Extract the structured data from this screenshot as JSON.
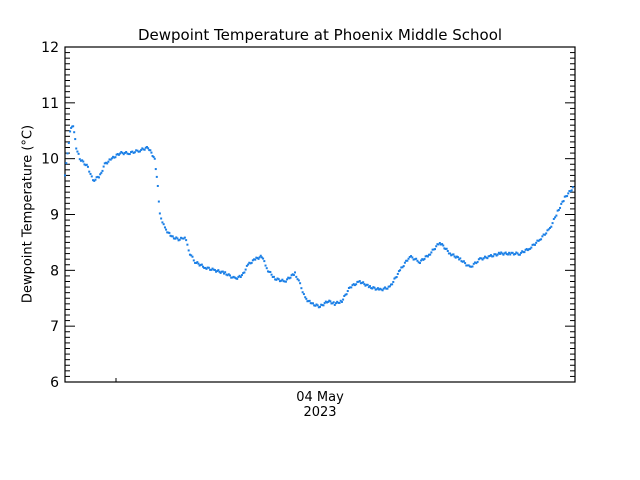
{
  "chart_data": {
    "type": "scatter",
    "title": "Dewpoint Temperature at Phoenix Middle School",
    "xlabel": "04 May\n2023",
    "ylabel": "Dewpoint Temperature (°C)",
    "ylim": [
      6,
      12
    ],
    "yticks": [
      6,
      7,
      8,
      9,
      10,
      11,
      12
    ],
    "xtick_labels": [
      "04 May 2023"
    ],
    "grid": false,
    "legend": null,
    "series_color": "#1a7fe6",
    "series": [
      {
        "name": "Dewpoint",
        "x_frac": [
          0.0,
          0.01,
          0.016,
          0.022,
          0.029,
          0.045,
          0.055,
          0.069,
          0.078,
          0.092,
          0.108,
          0.127,
          0.147,
          0.163,
          0.176,
          0.182,
          0.186,
          0.196,
          0.209,
          0.225,
          0.235,
          0.245,
          0.255,
          0.275,
          0.294,
          0.314,
          0.333,
          0.347,
          0.359,
          0.373,
          0.386,
          0.398,
          0.412,
          0.431,
          0.451,
          0.461,
          0.471,
          0.484,
          0.5,
          0.516,
          0.529,
          0.543,
          0.559,
          0.578,
          0.598,
          0.618,
          0.637,
          0.657,
          0.676,
          0.696,
          0.716,
          0.735,
          0.755,
          0.775,
          0.794,
          0.814,
          0.833,
          0.853,
          0.873,
          0.892,
          0.912,
          0.931,
          0.951,
          0.966,
          0.98,
          0.998
        ],
        "values": [
          9.7,
          10.5,
          10.6,
          10.2,
          10.0,
          9.85,
          9.6,
          9.7,
          9.9,
          10.0,
          10.1,
          10.1,
          10.15,
          10.2,
          10.0,
          9.5,
          9.0,
          8.75,
          8.6,
          8.55,
          8.6,
          8.3,
          8.15,
          8.05,
          8.0,
          7.95,
          7.85,
          7.9,
          8.1,
          8.2,
          8.25,
          8.0,
          7.85,
          7.8,
          7.95,
          7.75,
          7.5,
          7.4,
          7.35,
          7.45,
          7.4,
          7.45,
          7.7,
          7.8,
          7.7,
          7.65,
          7.7,
          8.0,
          8.25,
          8.15,
          8.3,
          8.5,
          8.3,
          8.2,
          8.05,
          8.2,
          8.25,
          8.3,
          8.3,
          8.3,
          8.4,
          8.55,
          8.75,
          9.05,
          9.3,
          9.5
        ]
      }
    ]
  },
  "labels": {
    "title": "Dewpoint Temperature at Phoenix Middle School",
    "ylabel": "Dewpoint Temperature (°C)",
    "xlabel_line1": "04 May",
    "xlabel_line2": "2023"
  }
}
